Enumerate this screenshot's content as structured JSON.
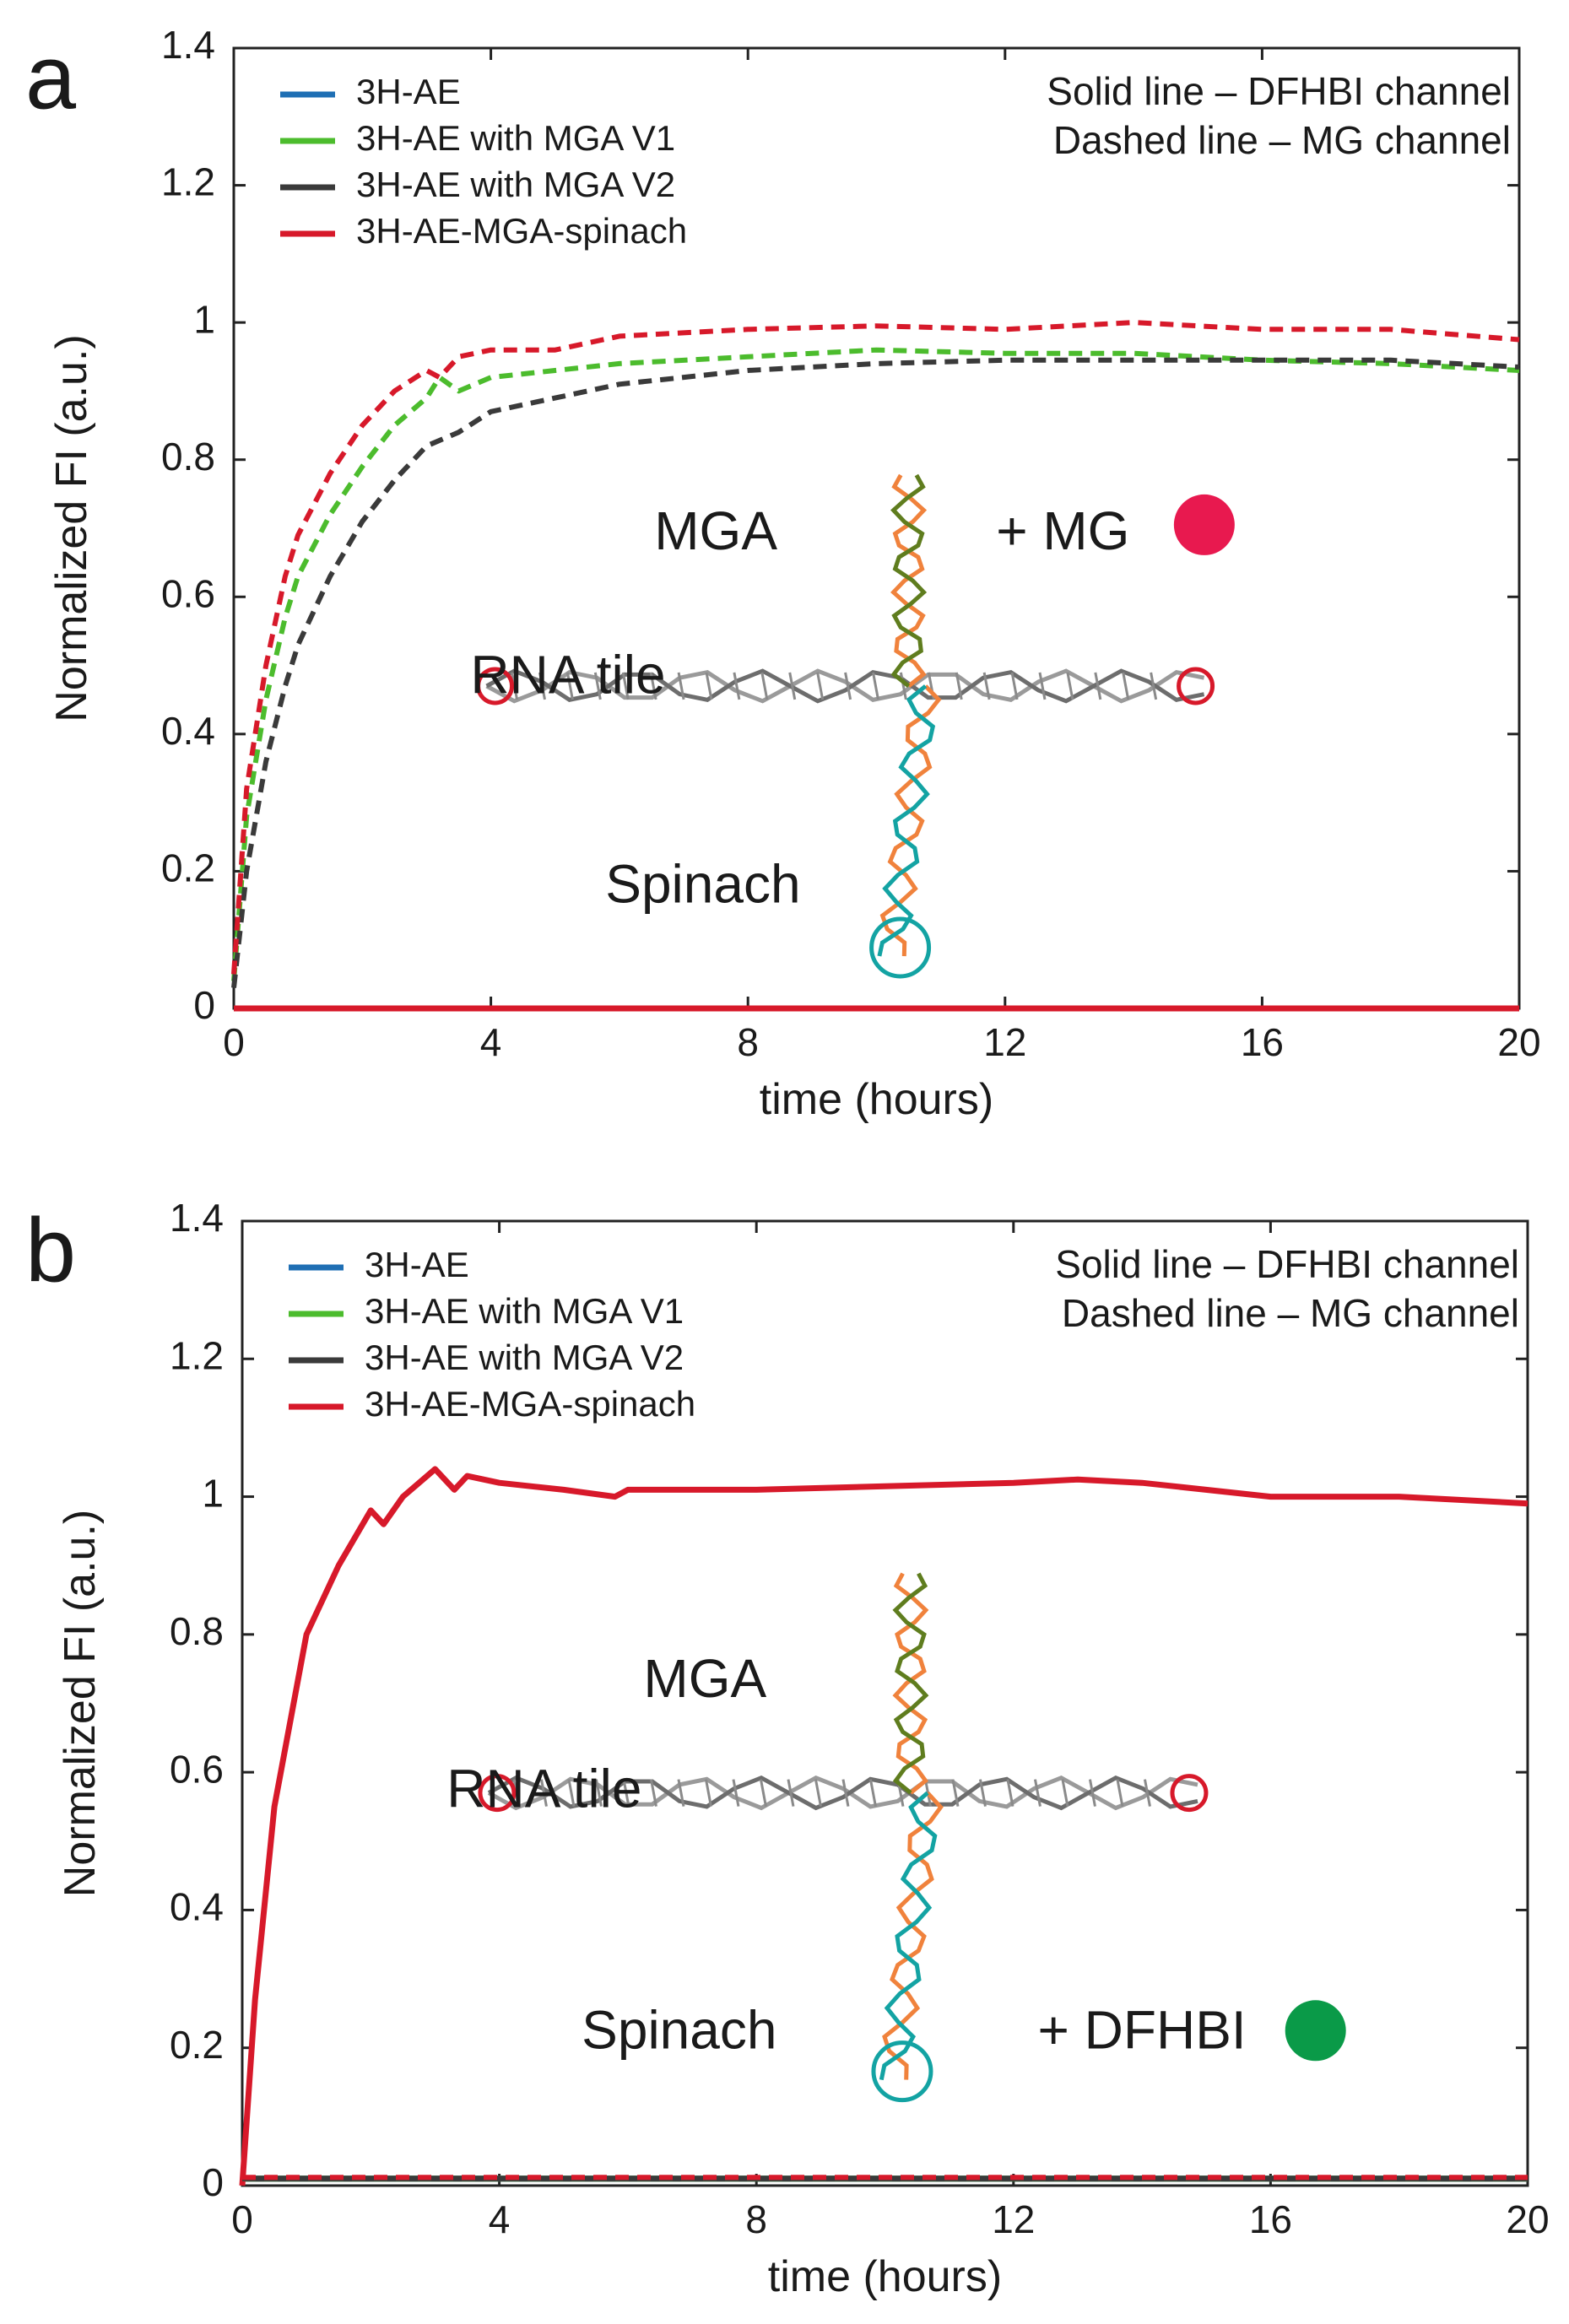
{
  "chart_data": [
    {
      "panel": "a",
      "type": "line",
      "xlabel": "time (hours)",
      "ylabel": "Normalized FI (a.u.)",
      "xlim": [
        0,
        20
      ],
      "ylim": [
        0,
        1.4
      ],
      "xticks": [
        0,
        4,
        8,
        12,
        16,
        20
      ],
      "yticks": [
        0,
        0.2,
        0.4,
        0.6,
        0.8,
        1,
        1.2,
        1.4
      ],
      "legend_position": "top-left",
      "notes": [
        "Solid line – DFHBI channel",
        "Dashed line – MG channel"
      ],
      "annotations": {
        "mga": "MGA",
        "tile": "RNA tile",
        "spinach": "Spinach",
        "dye": "+ MG",
        "dye_color": "#e8194f"
      },
      "series": [
        {
          "name": "3H-AE",
          "color": "#1f6fb4",
          "style": "solid",
          "x": [
            0,
            20
          ],
          "y": [
            0,
            0
          ]
        },
        {
          "name": "3H-AE with MGA V1",
          "color": "#4cbc2d",
          "style": "solid",
          "x": [
            0,
            20
          ],
          "y": [
            0,
            0
          ]
        },
        {
          "name": "3H-AE with MGA V2",
          "color": "#3a3a3a",
          "style": "solid",
          "x": [
            0,
            20
          ],
          "y": [
            0,
            0
          ]
        },
        {
          "name": "3H-AE-MGA-spinach",
          "color": "#d7192a",
          "style": "solid",
          "x": [
            0,
            20
          ],
          "y": [
            0,
            0
          ]
        },
        {
          "name": "3H-AE with MGA V1",
          "color": "#4cbc2d",
          "style": "dashed",
          "legend": false,
          "x": [
            0,
            0.2,
            0.5,
            0.8,
            1.0,
            1.5,
            2.0,
            2.5,
            3.0,
            3.2,
            3.5,
            4.0,
            5.0,
            6.0,
            8.0,
            10.0,
            12.0,
            14.0,
            16.0,
            18.0,
            20.0
          ],
          "y": [
            0.04,
            0.28,
            0.45,
            0.57,
            0.63,
            0.72,
            0.79,
            0.85,
            0.89,
            0.92,
            0.9,
            0.92,
            0.93,
            0.94,
            0.95,
            0.96,
            0.955,
            0.955,
            0.945,
            0.94,
            0.93
          ]
        },
        {
          "name": "3H-AE with MGA V2",
          "color": "#3a3a3a",
          "style": "dashed",
          "legend": false,
          "x": [
            0,
            0.2,
            0.5,
            0.8,
            1.0,
            1.5,
            2.0,
            2.5,
            3.0,
            3.5,
            4.0,
            5.0,
            6.0,
            8.0,
            10.0,
            12.0,
            14.0,
            16.0,
            18.0,
            20.0
          ],
          "y": [
            0.03,
            0.2,
            0.36,
            0.47,
            0.53,
            0.63,
            0.71,
            0.77,
            0.82,
            0.84,
            0.87,
            0.89,
            0.91,
            0.93,
            0.94,
            0.945,
            0.945,
            0.945,
            0.945,
            0.935
          ]
        },
        {
          "name": "3H-AE-MGA-spinach",
          "color": "#d7192a",
          "style": "dashed",
          "legend": false,
          "x": [
            0,
            0.2,
            0.5,
            0.8,
            1.0,
            1.5,
            2.0,
            2.5,
            3.0,
            3.2,
            3.5,
            4.0,
            5.0,
            6.0,
            8.0,
            10.0,
            12.0,
            14.0,
            16.0,
            18.0,
            20.0
          ],
          "y": [
            0.05,
            0.32,
            0.5,
            0.63,
            0.69,
            0.78,
            0.85,
            0.9,
            0.93,
            0.92,
            0.95,
            0.96,
            0.96,
            0.98,
            0.99,
            0.995,
            0.99,
            1.0,
            0.99,
            0.99,
            0.975
          ]
        }
      ]
    },
    {
      "panel": "b",
      "type": "line",
      "xlabel": "time (hours)",
      "ylabel": "Normalized FI (a.u.)",
      "xlim": [
        0,
        20
      ],
      "ylim": [
        0,
        1.4
      ],
      "xticks": [
        0,
        4,
        8,
        12,
        16,
        20
      ],
      "yticks": [
        0,
        0.2,
        0.4,
        0.6,
        0.8,
        1,
        1.2,
        1.4
      ],
      "legend_position": "top-left",
      "notes": [
        "Solid line – DFHBI channel",
        "Dashed line – MG channel"
      ],
      "annotations": {
        "mga": "MGA",
        "tile": "RNA tile",
        "spinach": "Spinach",
        "dye": "+ DFHBI",
        "dye_color": "#0a9a48"
      },
      "series": [
        {
          "name": "3H-AE",
          "color": "#1f6fb4",
          "style": "solid",
          "x": [
            0,
            20
          ],
          "y": [
            0.01,
            0.01
          ]
        },
        {
          "name": "3H-AE with MGA V1",
          "color": "#4cbc2d",
          "style": "solid",
          "x": [
            0,
            20
          ],
          "y": [
            0.01,
            0.01
          ]
        },
        {
          "name": "3H-AE with MGA V2",
          "color": "#3a3a3a",
          "style": "solid",
          "x": [
            0,
            20
          ],
          "y": [
            0.01,
            0.01
          ]
        },
        {
          "name": "3H-AE-MGA-spinach",
          "color": "#d7192a",
          "style": "solid",
          "x": [
            0,
            0.2,
            0.5,
            1.0,
            1.5,
            2.0,
            2.2,
            2.5,
            3.0,
            3.3,
            3.5,
            4.0,
            5.0,
            5.8,
            6.0,
            8.0,
            10.0,
            12.0,
            13.0,
            14.0,
            16.0,
            18.0,
            20.0
          ],
          "y": [
            0,
            0.27,
            0.55,
            0.8,
            0.9,
            0.98,
            0.96,
            1.0,
            1.04,
            1.01,
            1.03,
            1.02,
            1.01,
            1.0,
            1.01,
            1.01,
            1.015,
            1.02,
            1.025,
            1.02,
            1.0,
            1.0,
            0.99
          ]
        },
        {
          "name": "3H-AE with MGA V1",
          "color": "#4cbc2d",
          "style": "dashed",
          "legend": false,
          "x": [
            0,
            20
          ],
          "y": [
            0.01,
            0.01
          ]
        },
        {
          "name": "3H-AE with MGA V2",
          "color": "#3a3a3a",
          "style": "dashed",
          "legend": false,
          "x": [
            0,
            20
          ],
          "y": [
            0.01,
            0.01
          ]
        },
        {
          "name": "3H-AE-MGA-spinach",
          "color": "#d7192a",
          "style": "dashed",
          "legend": false,
          "x": [
            0,
            20
          ],
          "y": [
            0.012,
            0.012
          ]
        }
      ]
    }
  ]
}
